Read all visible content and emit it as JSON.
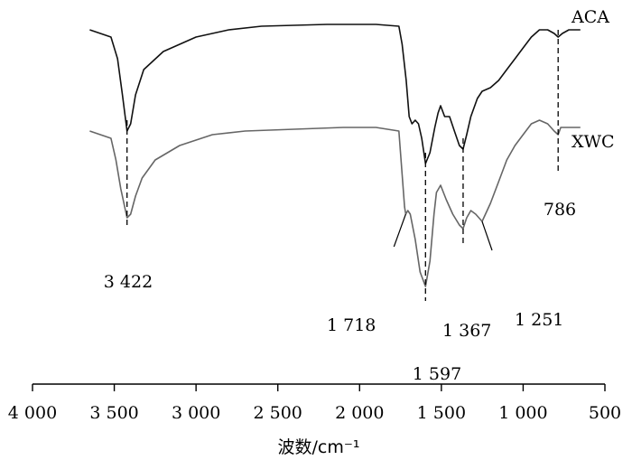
{
  "chart_data": {
    "type": "line",
    "title": "",
    "xlabel": "波数/cm⁻¹",
    "ylabel": "",
    "xlim": [
      4000,
      500
    ],
    "x_reversed": true,
    "grid": false,
    "y_axis_visible": false,
    "xticks": [
      4000,
      3500,
      3000,
      2500,
      2000,
      1500,
      1000,
      500
    ],
    "xtick_labels": [
      "4 000",
      "3 500",
      "3 000",
      "2 500",
      "2 000",
      "1 500",
      "1 000",
      "500"
    ],
    "series": [
      {
        "name": "ACA",
        "color": "#111111",
        "points": [
          [
            3650,
            98
          ],
          [
            3520,
            96
          ],
          [
            3480,
            90
          ],
          [
            3450,
            80
          ],
          [
            3422,
            70
          ],
          [
            3400,
            72
          ],
          [
            3370,
            80
          ],
          [
            3320,
            87
          ],
          [
            3200,
            92
          ],
          [
            3000,
            96
          ],
          [
            2800,
            98
          ],
          [
            2600,
            99
          ],
          [
            2200,
            99.5
          ],
          [
            1900,
            99.5
          ],
          [
            1760,
            99
          ],
          [
            1740,
            94
          ],
          [
            1715,
            84
          ],
          [
            1697,
            74
          ],
          [
            1680,
            72
          ],
          [
            1660,
            73
          ],
          [
            1640,
            72
          ],
          [
            1620,
            68
          ],
          [
            1597,
            61
          ],
          [
            1570,
            64
          ],
          [
            1540,
            71
          ],
          [
            1520,
            75
          ],
          [
            1505,
            77
          ],
          [
            1480,
            74
          ],
          [
            1450,
            74
          ],
          [
            1420,
            70
          ],
          [
            1390,
            66
          ],
          [
            1367,
            65
          ],
          [
            1345,
            69
          ],
          [
            1320,
            74
          ],
          [
            1280,
            79
          ],
          [
            1251,
            81
          ],
          [
            1200,
            82
          ],
          [
            1150,
            84
          ],
          [
            1100,
            87
          ],
          [
            1050,
            90
          ],
          [
            1000,
            93
          ],
          [
            950,
            96
          ],
          [
            900,
            98
          ],
          [
            850,
            98
          ],
          [
            810,
            97
          ],
          [
            786,
            96
          ],
          [
            760,
            97
          ],
          [
            720,
            98
          ],
          [
            650,
            98
          ]
        ]
      },
      {
        "name": "XWC",
        "color": "#666666",
        "points": [
          [
            3650,
            70
          ],
          [
            3520,
            68
          ],
          [
            3490,
            62
          ],
          [
            3460,
            54
          ],
          [
            3422,
            46
          ],
          [
            3400,
            47
          ],
          [
            3370,
            52
          ],
          [
            3330,
            57
          ],
          [
            3250,
            62
          ],
          [
            3100,
            66
          ],
          [
            2900,
            69
          ],
          [
            2700,
            70
          ],
          [
            2400,
            70.5
          ],
          [
            2100,
            71
          ],
          [
            1980,
            71
          ],
          [
            1900,
            71
          ],
          [
            1760,
            70
          ],
          [
            1740,
            58
          ],
          [
            1725,
            49
          ],
          [
            1718,
            47
          ],
          [
            1705,
            48
          ],
          [
            1690,
            47
          ],
          [
            1660,
            40
          ],
          [
            1630,
            31
          ],
          [
            1597,
            27
          ],
          [
            1570,
            34
          ],
          [
            1545,
            47
          ],
          [
            1530,
            53
          ],
          [
            1505,
            55
          ],
          [
            1470,
            51
          ],
          [
            1430,
            47
          ],
          [
            1390,
            44
          ],
          [
            1367,
            43
          ],
          [
            1345,
            46
          ],
          [
            1320,
            48
          ],
          [
            1290,
            47
          ],
          [
            1251,
            45
          ],
          [
            1200,
            50
          ],
          [
            1150,
            56
          ],
          [
            1100,
            62
          ],
          [
            1050,
            66
          ],
          [
            1000,
            69
          ],
          [
            950,
            72
          ],
          [
            900,
            73
          ],
          [
            850,
            72
          ],
          [
            810,
            70
          ],
          [
            786,
            69
          ],
          [
            770,
            71
          ],
          [
            720,
            71
          ],
          [
            650,
            71
          ]
        ]
      }
    ],
    "annotations": [
      {
        "text": "ACA"
      },
      {
        "text": "XWC"
      },
      {
        "text": "3 422"
      },
      {
        "text": "1 718"
      },
      {
        "text": "1 597"
      },
      {
        "text": "1 367"
      },
      {
        "text": "1 251"
      },
      {
        "text": "786"
      }
    ]
  }
}
